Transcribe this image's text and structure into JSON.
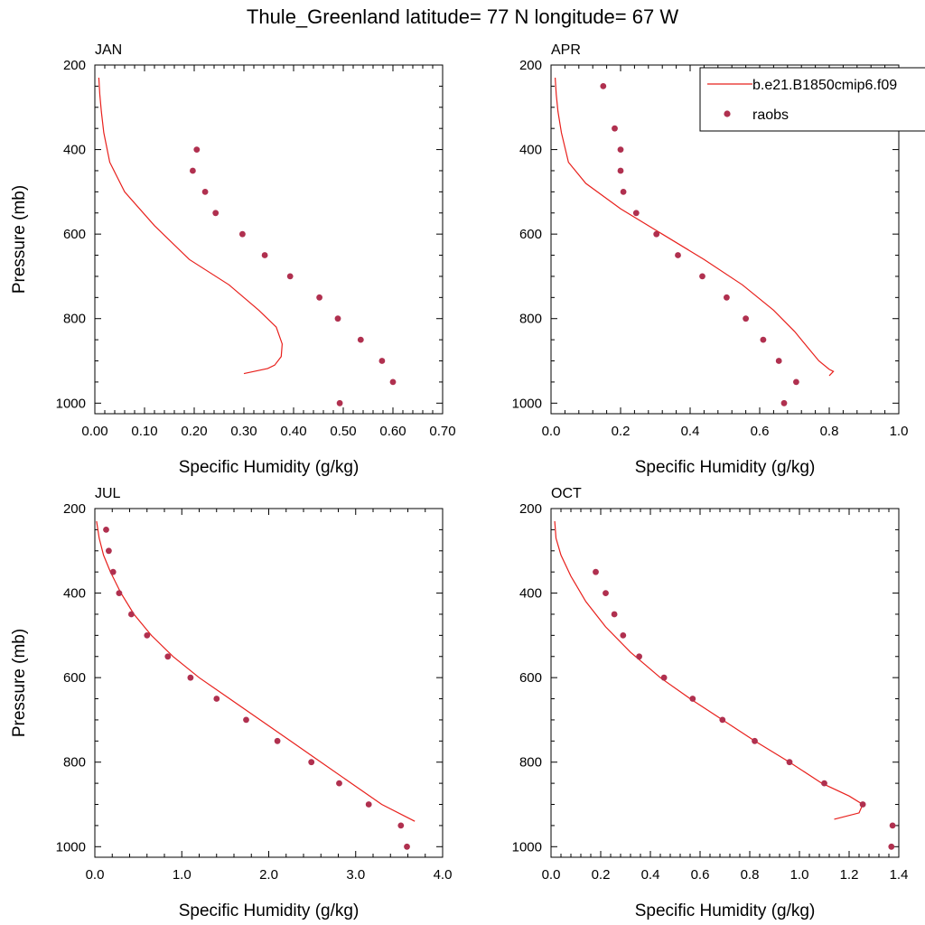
{
  "title": "Thule_Greenland  latitude= 77 N longitude= 67 W",
  "legend": {
    "entries": [
      {
        "label": "b.e21.B1850cmip6.f09",
        "kind": "line"
      },
      {
        "label": "raobs",
        "kind": "marker"
      }
    ]
  },
  "colors": {
    "model": "#e8201c",
    "obs": "#b0304f",
    "axis": "#000000"
  },
  "chart_data": [
    {
      "type": "line",
      "panel_label": "JAN",
      "xlabel": "Specific Humidity (g/kg)",
      "ylabel": "Pressure (mb)",
      "xlim": [
        0,
        0.7
      ],
      "ylim": [
        1025,
        200
      ],
      "xticks": [
        0,
        0.1,
        0.2,
        0.3,
        0.4,
        0.5,
        0.6,
        0.7
      ],
      "xtick_labels": [
        "0.00",
        "0.10",
        "0.20",
        "0.30",
        "0.40",
        "0.50",
        "0.60",
        "0.70"
      ],
      "yticks": [
        200,
        400,
        600,
        800,
        1000
      ],
      "ytick_labels": [
        "200",
        "400",
        "600",
        "800",
        "1000"
      ],
      "series": [
        {
          "name": "b.e21.B1850cmip6.f09",
          "kind": "line",
          "x": [
            0.008,
            0.01,
            0.013,
            0.018,
            0.03,
            0.06,
            0.12,
            0.19,
            0.27,
            0.33,
            0.365,
            0.377,
            0.375,
            0.362,
            0.348,
            0.3
          ],
          "y": [
            230,
            270,
            310,
            360,
            430,
            500,
            580,
            660,
            720,
            780,
            820,
            860,
            890,
            910,
            918,
            930
          ]
        },
        {
          "name": "raobs",
          "kind": "scatter",
          "x": [
            0.205,
            0.197,
            0.222,
            0.243,
            0.297,
            0.342,
            0.393,
            0.452,
            0.489,
            0.535,
            0.578,
            0.6,
            0.493
          ],
          "y": [
            400,
            450,
            500,
            550,
            600,
            650,
            700,
            750,
            800,
            850,
            900,
            950,
            1000
          ]
        }
      ]
    },
    {
      "type": "line",
      "panel_label": "APR",
      "xlabel": "Specific Humidity (g/kg)",
      "ylabel": "",
      "xlim": [
        0,
        1.0
      ],
      "ylim": [
        1025,
        200
      ],
      "xticks": [
        0,
        0.2,
        0.4,
        0.6,
        0.8,
        1.0
      ],
      "xtick_labels": [
        "0.0",
        "0.2",
        "0.4",
        "0.6",
        "0.8",
        "1.0"
      ],
      "yticks": [
        200,
        400,
        600,
        800,
        1000
      ],
      "ytick_labels": [
        "200",
        "400",
        "600",
        "800",
        "1000"
      ],
      "series": [
        {
          "name": "b.e21.B1850cmip6.f09",
          "kind": "line",
          "x": [
            0.012,
            0.015,
            0.02,
            0.03,
            0.05,
            0.1,
            0.2,
            0.32,
            0.44,
            0.55,
            0.64,
            0.7,
            0.74,
            0.77,
            0.8,
            0.812,
            0.8
          ],
          "y": [
            230,
            270,
            310,
            360,
            430,
            480,
            540,
            600,
            660,
            720,
            780,
            830,
            870,
            900,
            920,
            925,
            935
          ]
        },
        {
          "name": "raobs",
          "kind": "scatter",
          "x": [
            0.15,
            0.183,
            0.2,
            0.2,
            0.208,
            0.245,
            0.303,
            0.365,
            0.435,
            0.505,
            0.56,
            0.61,
            0.655,
            0.705,
            0.67
          ],
          "y": [
            250,
            350,
            400,
            450,
            500,
            550,
            600,
            650,
            700,
            750,
            800,
            850,
            900,
            950,
            1000
          ]
        }
      ]
    },
    {
      "type": "line",
      "panel_label": "JUL",
      "xlabel": "Specific Humidity (g/kg)",
      "ylabel": "Pressure (mb)",
      "xlim": [
        0,
        4.0
      ],
      "ylim": [
        1025,
        200
      ],
      "xticks": [
        0,
        1,
        2,
        3,
        4
      ],
      "xtick_labels": [
        "0.0",
        "1.0",
        "2.0",
        "3.0",
        "4.0"
      ],
      "yticks": [
        200,
        400,
        600,
        800,
        1000
      ],
      "ytick_labels": [
        "200",
        "400",
        "600",
        "800",
        "1000"
      ],
      "series": [
        {
          "name": "b.e21.B1850cmip6.f09",
          "kind": "line",
          "x": [
            0.02,
            0.05,
            0.1,
            0.18,
            0.3,
            0.45,
            0.65,
            0.9,
            1.2,
            1.55,
            1.9,
            2.25,
            2.6,
            2.95,
            3.3,
            3.68
          ],
          "y": [
            230,
            270,
            310,
            350,
            400,
            450,
            500,
            550,
            600,
            650,
            700,
            750,
            800,
            850,
            900,
            940
          ]
        },
        {
          "name": "raobs",
          "kind": "scatter",
          "x": [
            0.13,
            0.16,
            0.21,
            0.28,
            0.42,
            0.6,
            0.84,
            1.1,
            1.4,
            1.74,
            2.1,
            2.49,
            2.81,
            3.15,
            3.52,
            3.59
          ],
          "y": [
            250,
            300,
            350,
            400,
            450,
            500,
            550,
            600,
            650,
            700,
            750,
            800,
            850,
            900,
            950,
            1000
          ]
        }
      ]
    },
    {
      "type": "line",
      "panel_label": "OCT",
      "xlabel": "Specific Humidity (g/kg)",
      "ylabel": "",
      "xlim": [
        0,
        1.4
      ],
      "ylim": [
        1025,
        200
      ],
      "xticks": [
        0,
        0.2,
        0.4,
        0.6,
        0.8,
        1.0,
        1.2,
        1.4
      ],
      "xtick_labels": [
        "0.0",
        "0.2",
        "0.4",
        "0.6",
        "0.8",
        "1.0",
        "1.2",
        "1.4"
      ],
      "yticks": [
        200,
        400,
        600,
        800,
        1000
      ],
      "ytick_labels": [
        "200",
        "400",
        "600",
        "800",
        "1000"
      ],
      "series": [
        {
          "name": "b.e21.B1850cmip6.f09",
          "kind": "line",
          "x": [
            0.015,
            0.02,
            0.04,
            0.08,
            0.14,
            0.22,
            0.32,
            0.44,
            0.56,
            0.69,
            0.82,
            0.96,
            1.09,
            1.2,
            1.255,
            1.24,
            1.14
          ],
          "y": [
            230,
            270,
            310,
            360,
            420,
            480,
            540,
            600,
            650,
            700,
            750,
            800,
            850,
            880,
            900,
            920,
            935
          ]
        },
        {
          "name": "raobs",
          "kind": "scatter",
          "x": [
            0.18,
            0.22,
            0.255,
            0.29,
            0.355,
            0.455,
            0.57,
            0.69,
            0.82,
            0.96,
            1.1,
            1.255,
            1.375,
            1.37
          ],
          "y": [
            350,
            400,
            450,
            500,
            550,
            600,
            650,
            700,
            750,
            800,
            850,
            900,
            950,
            1000
          ]
        }
      ]
    }
  ]
}
